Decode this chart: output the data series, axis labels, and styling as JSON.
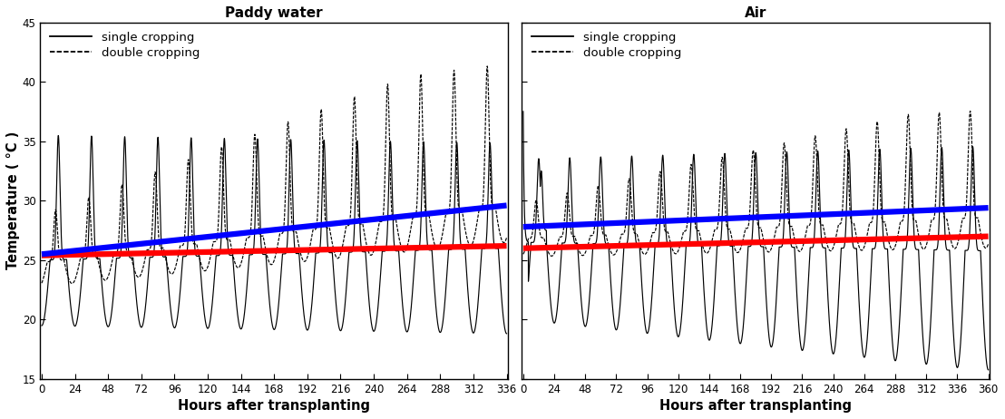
{
  "title_left": "Paddy water",
  "title_right": "Air",
  "xlabel": "Hours after transplanting",
  "ylabel": "Temperature ( °C )",
  "ylim": [
    15,
    45
  ],
  "yticks": [
    15,
    20,
    25,
    30,
    35,
    40,
    45
  ],
  "xlim_left": [
    -1,
    337
  ],
  "xlim_right": [
    -1,
    361
  ],
  "xticks_left": [
    0,
    24,
    48,
    72,
    96,
    120,
    144,
    168,
    192,
    216,
    240,
    264,
    288,
    312,
    336
  ],
  "xticks_right": [
    0,
    24,
    48,
    72,
    96,
    120,
    144,
    168,
    192,
    216,
    240,
    264,
    288,
    312,
    336,
    360
  ],
  "legend_entries": [
    "single cropping",
    "double cropping"
  ],
  "blue_color": "#0000FF",
  "red_color": "#FF0000",
  "black": "#000000",
  "bg": "#FFFFFF",
  "pw_red_trend": [
    25.4,
    26.2
  ],
  "pw_blue_trend": [
    25.5,
    29.6
  ],
  "air_red_trend": [
    26.0,
    27.0
  ],
  "air_blue_trend": [
    27.8,
    29.4
  ]
}
